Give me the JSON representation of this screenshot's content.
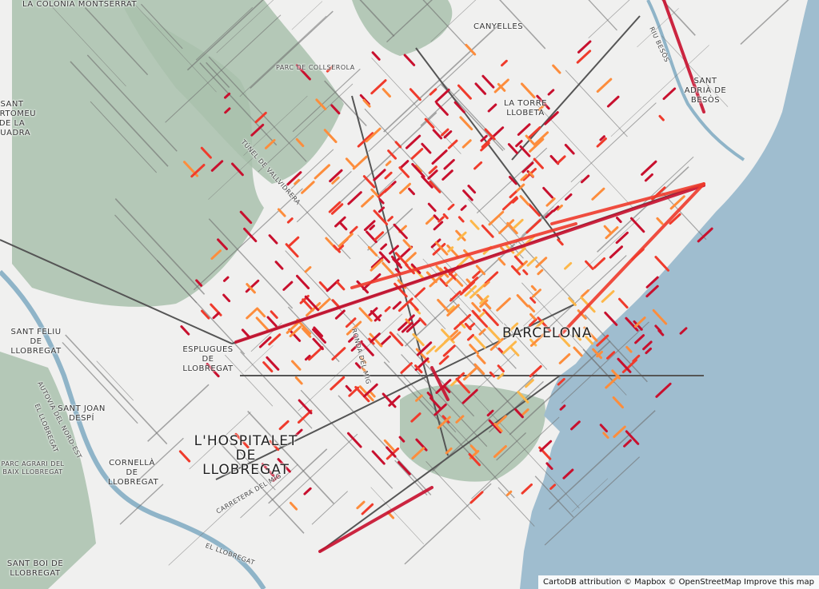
{
  "map": {
    "colors": {
      "land": "#f0f0ef",
      "park": "#a9c1ad",
      "sea": "#9fbdcf",
      "road": "#6f6f6f",
      "river": "#8fb4c8",
      "hot_high": "#c8102e",
      "hot_mid": "#ef3b2c",
      "hot_low": "#fd8d3c",
      "hot_lowest": "#fdb84a"
    },
    "labels": {
      "la_colonia_montserrat": "La Colònia Montserrat",
      "parc_collserola": "Parc de Collserola",
      "sant_bartomeu": "Sant Bartomeu de la Quadra",
      "canyelles": "Canyelles",
      "la_torre_llobeta": "La Torre Llobeta",
      "sant_adria": "Sant Adrià de Besòs",
      "tunel_vallvidrera": "Túnel de Vallvidrera",
      "sant_feliu": "Sant Feliu de Llobregat",
      "esplugues": "Esplugues de Llobregat",
      "sant_joan_despi": "Sant Joan Despí",
      "autovia": "Autovia del Nord-Est",
      "el_llobregat_river": "El Llobregat",
      "parc_agrari": "Parc Agrari del Baix Llobregat",
      "cornella": "Cornellà de Llobregat",
      "hospitalet": "L'Hospitalet de Llobregat",
      "carretera_mig": "Carretera del Mig",
      "ronda_mig": "Ronda del Mig",
      "barcelona": "Barcelona",
      "sant_boi": "Sant Boi de Llobregat",
      "riu_besos": "Riu Besòs",
      "el_llobregat_bottom": "El Llobregat"
    },
    "attribution": {
      "cartodb": "CartoDB attribution",
      "mapbox": "© Mapbox",
      "osm": "© OpenStreetMap",
      "improve": "Improve this map"
    }
  }
}
